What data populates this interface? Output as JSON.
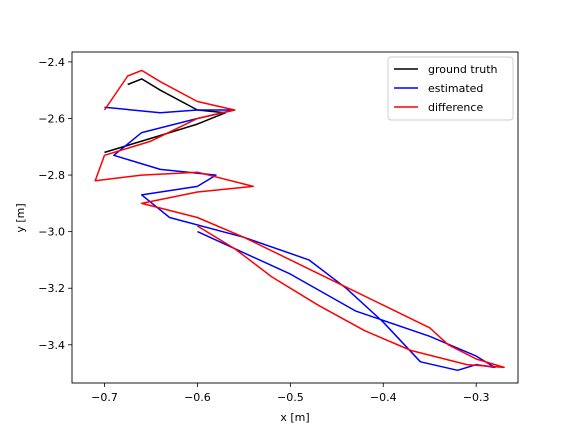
{
  "chart_data": {
    "type": "line",
    "xlabel": "x [m]",
    "ylabel": "y [m]",
    "xlim": [
      -0.735,
      -0.255
    ],
    "ylim": [
      -3.535,
      -2.365
    ],
    "xticks": [
      -0.7,
      -0.6,
      -0.5,
      -0.4,
      -0.3
    ],
    "xtick_labels": [
      "−0.7",
      "−0.6",
      "−0.5",
      "−0.4",
      "−0.3"
    ],
    "yticks": [
      -2.4,
      -2.6,
      -2.8,
      -3.0,
      -3.2,
      -3.4
    ],
    "ytick_labels": [
      "−2.4",
      "−2.6",
      "−2.8",
      "−3.0",
      "−3.2",
      "−3.4"
    ],
    "grid": false,
    "legend_position": "top-right",
    "series": [
      {
        "name": "ground truth",
        "color": "#000000",
        "x": [
          -0.675,
          -0.66,
          -0.64,
          -0.6,
          -0.57,
          -0.6,
          -0.64,
          -0.7
        ],
        "y": [
          -2.48,
          -2.46,
          -2.5,
          -2.57,
          -2.58,
          -2.62,
          -2.66,
          -2.72
        ]
      },
      {
        "name": "estimated",
        "color": "#0000ff",
        "x": [
          -0.7,
          -0.64,
          -0.6,
          -0.56,
          -0.6,
          -0.66,
          -0.69,
          -0.64,
          -0.58,
          -0.6,
          -0.66,
          -0.63,
          -0.55,
          -0.48,
          -0.44,
          -0.4,
          -0.36,
          -0.32,
          -0.3,
          -0.28,
          -0.3,
          -0.35,
          -0.43,
          -0.5,
          -0.6
        ],
        "y": [
          -2.56,
          -2.58,
          -2.57,
          -2.57,
          -2.6,
          -2.65,
          -2.73,
          -2.78,
          -2.8,
          -2.84,
          -2.87,
          -2.95,
          -3.02,
          -3.1,
          -3.2,
          -3.32,
          -3.46,
          -3.49,
          -3.47,
          -3.48,
          -3.44,
          -3.37,
          -3.28,
          -3.15,
          -3.0
        ]
      },
      {
        "name": "difference",
        "color": "#ff0000",
        "x": [
          -0.7,
          -0.675,
          -0.66,
          -0.64,
          -0.6,
          -0.56,
          -0.6,
          -0.65,
          -0.7,
          -0.71,
          -0.66,
          -0.6,
          -0.54,
          -0.6,
          -0.66,
          -0.6,
          -0.55,
          -0.5,
          -0.45,
          -0.4,
          -0.35,
          -0.33,
          -0.3,
          -0.27,
          -0.31,
          -0.37,
          -0.42,
          -0.47,
          -0.52,
          -0.56,
          -0.6
        ],
        "y": [
          -2.57,
          -2.45,
          -2.43,
          -2.47,
          -2.54,
          -2.57,
          -2.6,
          -2.68,
          -2.73,
          -2.82,
          -2.8,
          -2.79,
          -2.84,
          -2.86,
          -2.9,
          -2.95,
          -3.02,
          -3.1,
          -3.18,
          -3.26,
          -3.34,
          -3.4,
          -3.45,
          -3.48,
          -3.47,
          -3.42,
          -3.35,
          -3.26,
          -3.16,
          -3.06,
          -2.98
        ]
      }
    ]
  }
}
